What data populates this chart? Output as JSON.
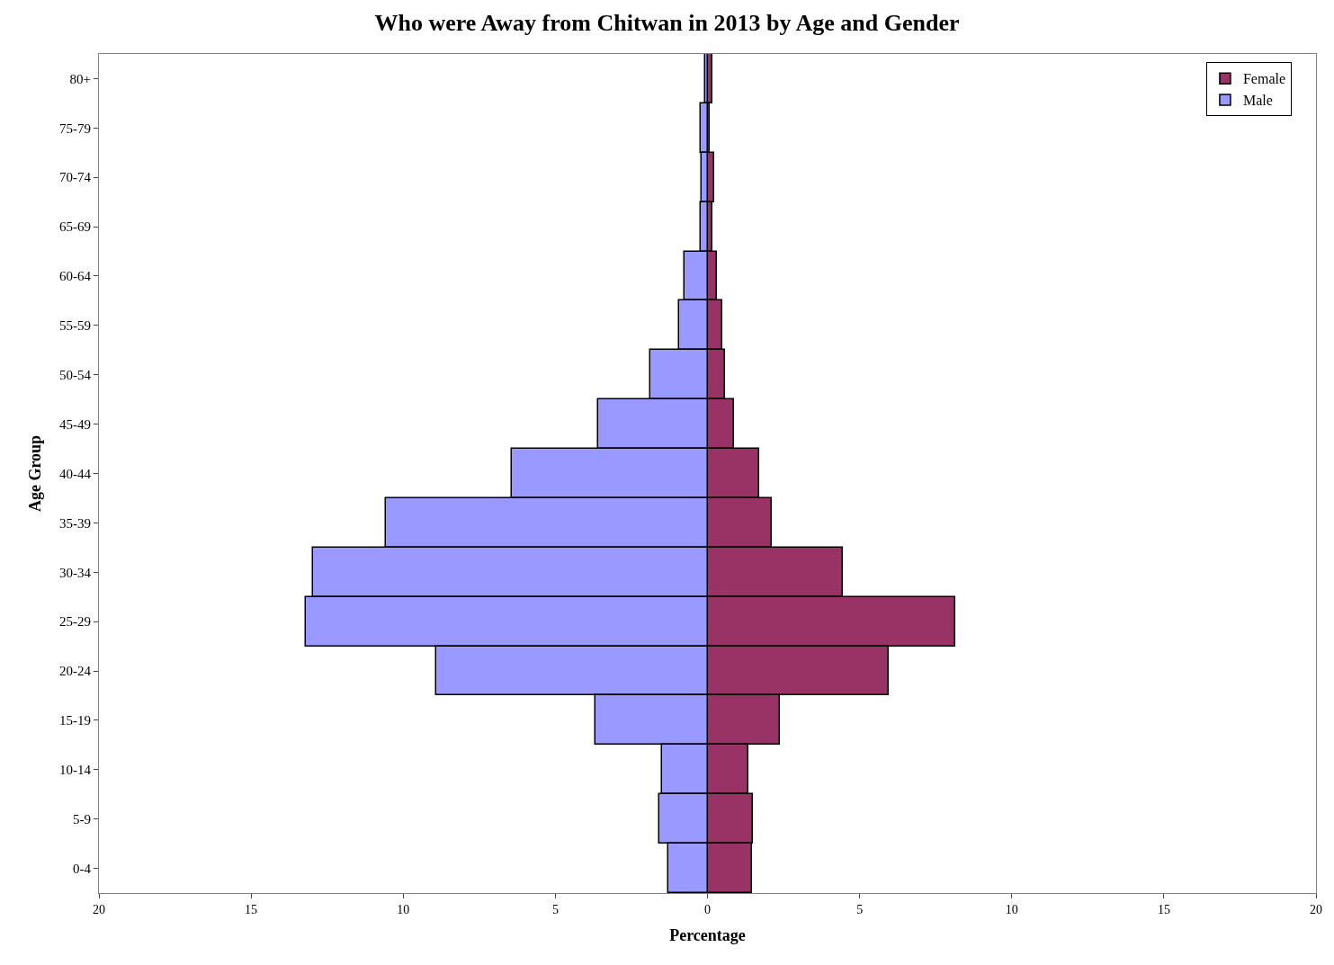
{
  "chart_data": {
    "type": "bar",
    "orientation": "horizontal",
    "stacked": true,
    "title": "Who were Away from Chitwan in 2013 by Age and Gender",
    "xlabel": "Percentage",
    "ylabel": "Age Group",
    "categories": [
      "80+",
      "75-79",
      "70-74",
      "65-69",
      "60-64",
      "55-59",
      "50-54",
      "45-49",
      "40-44",
      "35-39",
      "30-34",
      "25-29",
      "20-24",
      "15-19",
      "10-14",
      "5-9",
      "0-4"
    ],
    "series": [
      {
        "name": "Female",
        "color": "#993366",
        "values": [
          0.16,
          0.06,
          0.22,
          0.16,
          0.32,
          0.48,
          0.58,
          0.87,
          1.7,
          2.12,
          4.46,
          8.14,
          5.96,
          2.37,
          1.35,
          1.5,
          1.47
        ]
      },
      {
        "name": "Male",
        "color": "#9999ff",
        "values": [
          -0.06,
          -0.22,
          -0.19,
          -0.22,
          -0.74,
          -0.93,
          -1.89,
          -3.59,
          -6.44,
          -10.58,
          -12.95,
          -13.2,
          -8.91,
          -3.69,
          -1.5,
          -1.57,
          -1.28
        ]
      }
    ],
    "xlim": [
      -20,
      20
    ],
    "xticks": [
      {
        "value": -20,
        "label": "20"
      },
      {
        "value": -15,
        "label": "15"
      },
      {
        "value": -10,
        "label": "10"
      },
      {
        "value": -5,
        "label": "5"
      },
      0,
      5,
      10,
      15,
      20
    ],
    "legend": "top right"
  }
}
